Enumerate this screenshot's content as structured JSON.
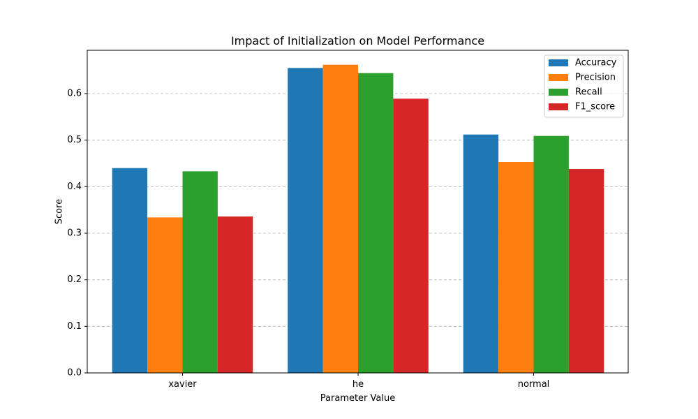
{
  "chart_data": {
    "type": "bar",
    "title": "Impact of Initialization on Model Performance",
    "xlabel": "Parameter Value",
    "ylabel": "Score",
    "categories": [
      "xavier",
      "he",
      "normal"
    ],
    "series": [
      {
        "name": "Accuracy",
        "color": "#1f77b4",
        "values": [
          0.44,
          0.655,
          0.512
        ]
      },
      {
        "name": "Precision",
        "color": "#ff7f0e",
        "values": [
          0.334,
          0.662,
          0.453
        ]
      },
      {
        "name": "Recall",
        "color": "#2ca02c",
        "values": [
          0.433,
          0.644,
          0.509
        ]
      },
      {
        "name": "F1_score",
        "color": "#d62728",
        "values": [
          0.336,
          0.589,
          0.438
        ]
      }
    ],
    "ylim": [
      0,
      0.693
    ],
    "yticks": [
      "0.0",
      "0.1",
      "0.2",
      "0.3",
      "0.4",
      "0.5",
      "0.6"
    ],
    "grid": "y-dashed",
    "legend_position": "top-right"
  }
}
